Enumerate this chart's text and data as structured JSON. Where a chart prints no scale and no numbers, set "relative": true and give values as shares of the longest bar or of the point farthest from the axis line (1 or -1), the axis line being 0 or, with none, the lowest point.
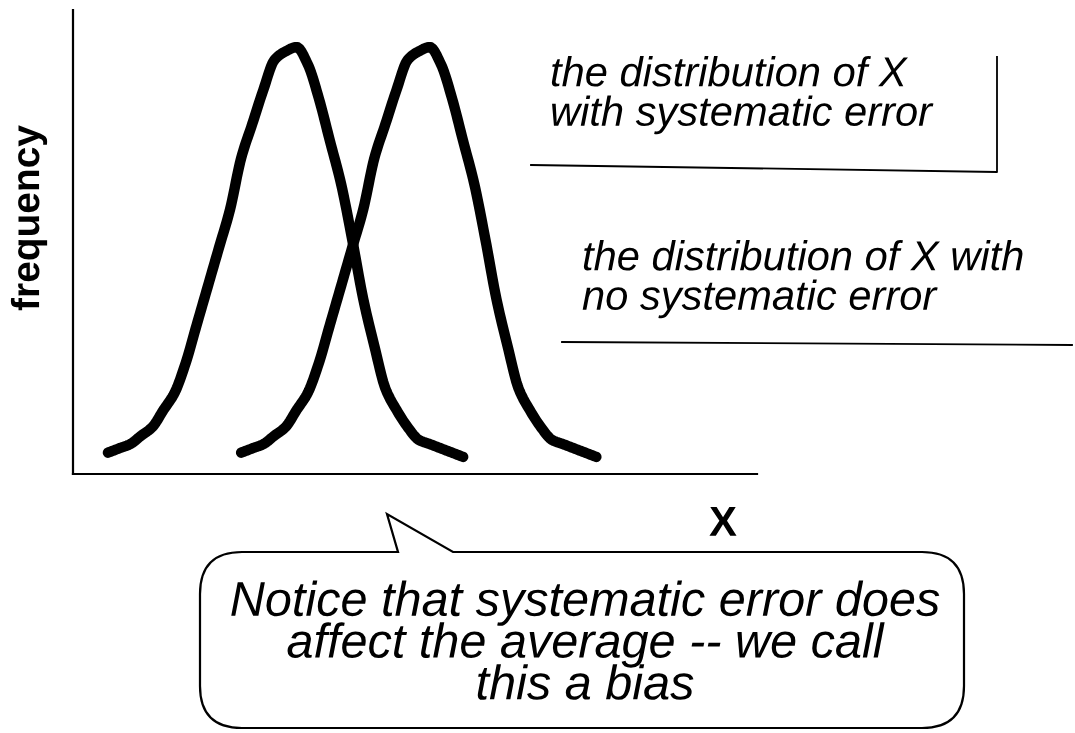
{
  "chart_data": {
    "type": "line",
    "relative": true,
    "xlabel": "X",
    "ylabel": "frequency",
    "categories": [
      null,
      null,
      null,
      null,
      null,
      null,
      null,
      null,
      null,
      null,
      null,
      null,
      null,
      null,
      null,
      null,
      null,
      null,
      null,
      null,
      null,
      null,
      null,
      null,
      null,
      null,
      null,
      null,
      null,
      null,
      null,
      null,
      null,
      null,
      null,
      null,
      null,
      null,
      null,
      null,
      null,
      null,
      null,
      null,
      null
    ],
    "series": [
      {
        "color": "#000000",
        "values": [
          0.05,
          0.06,
          0.07,
          0.09,
          0.11,
          0.15,
          0.19,
          0.26,
          0.35,
          0.44,
          0.53,
          0.62,
          0.74,
          0.82,
          0.9,
          0.97,
          0.99,
          1.0,
          0.96,
          0.88,
          0.78,
          0.68,
          0.55,
          0.41,
          0.3,
          0.2,
          0.15,
          0.11,
          0.08,
          0.07,
          0.06,
          0.05,
          0.04,
          null,
          null,
          null,
          null,
          null,
          null,
          null,
          null,
          null,
          null,
          null,
          null
        ]
      },
      {
        "color": "#000000",
        "values": [
          null,
          null,
          null,
          null,
          null,
          null,
          null,
          null,
          null,
          null,
          null,
          null,
          0.05,
          0.06,
          0.07,
          0.09,
          0.11,
          0.15,
          0.19,
          0.26,
          0.35,
          0.44,
          0.53,
          0.62,
          0.74,
          0.82,
          0.9,
          0.97,
          0.99,
          1.0,
          0.96,
          0.88,
          0.78,
          0.68,
          0.55,
          0.41,
          0.3,
          0.2,
          0.15,
          0.11,
          0.08,
          0.07,
          0.06,
          0.05,
          0.04
        ]
      }
    ],
    "annotations": [
      "the distribution of X\nwith systematic error",
      "the distribution of X with\nno systematic error",
      "Notice that systematic error does\naffect the average -- we call\nthis a bias"
    ]
  }
}
